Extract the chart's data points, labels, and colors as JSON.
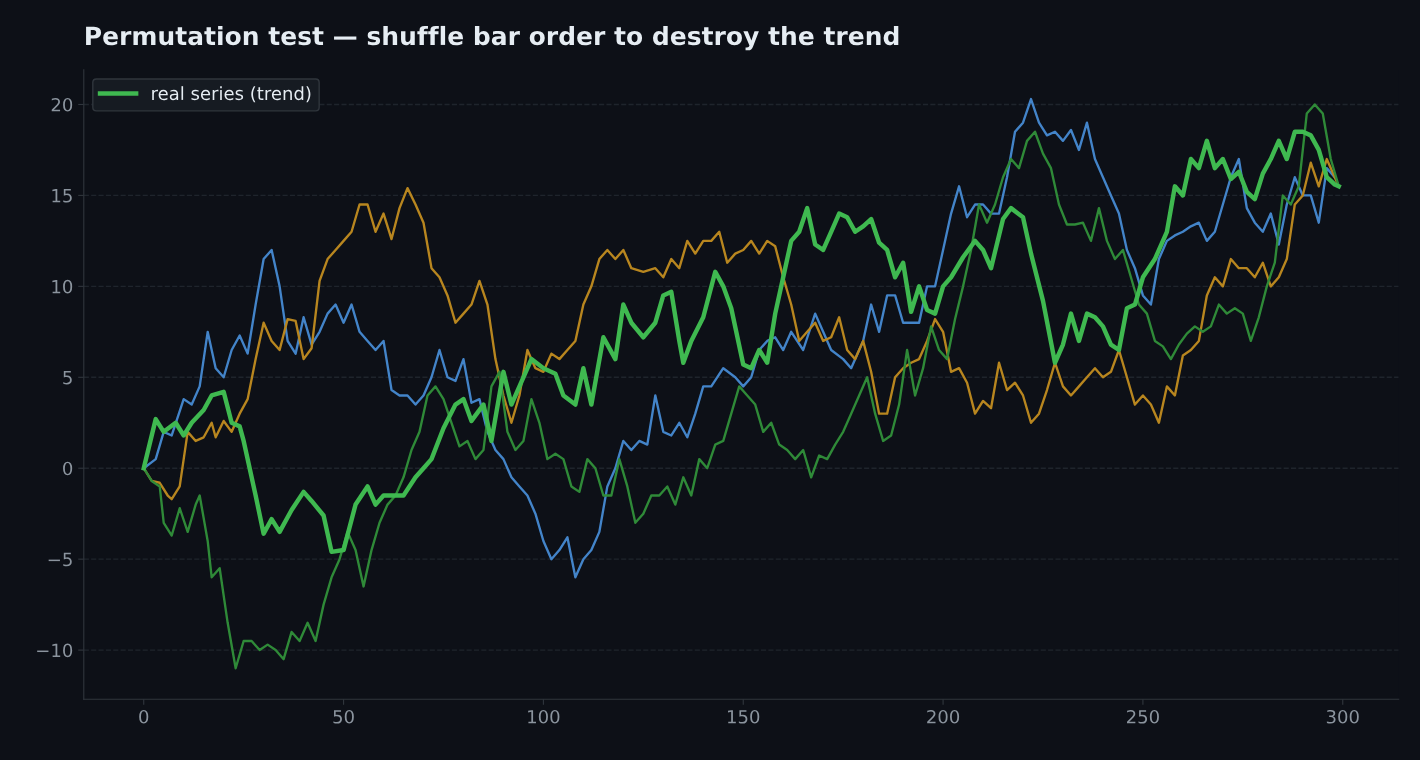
{
  "chart_data": {
    "type": "line",
    "title": "Permutation test — shuffle bar order to destroy the trend",
    "xlim": [
      -15,
      314
    ],
    "ylim": [
      -12.7,
      21.9
    ],
    "xticks": [
      0,
      50,
      100,
      150,
      200,
      250,
      300
    ],
    "yticks": [
      {
        "value": -10,
        "label": "−10"
      },
      {
        "value": -5,
        "label": "−5"
      },
      0,
      5,
      10,
      15,
      20
    ],
    "grid": "y",
    "legend": "top left",
    "line_style": "solid",
    "marker": "none",
    "series": [
      {
        "color": "#4384c9",
        "x": [
          0,
          3,
          5,
          7,
          10,
          12,
          14,
          16,
          18,
          20,
          22,
          24,
          26,
          28,
          30,
          32,
          34,
          36,
          38,
          40,
          42,
          44,
          46,
          48,
          50,
          52,
          54,
          56,
          58,
          60,
          62,
          64,
          66,
          68,
          70,
          72,
          74,
          76,
          78,
          80,
          82,
          84,
          86,
          88,
          90,
          92,
          94,
          96,
          98,
          100,
          102,
          104,
          106,
          108,
          110,
          112,
          114,
          116,
          118,
          120,
          122,
          124,
          126,
          128,
          130,
          132,
          134,
          136,
          138,
          140,
          142,
          145,
          148,
          150,
          152,
          154,
          156,
          158,
          160,
          162,
          165,
          168,
          170,
          172,
          175,
          177,
          180,
          182,
          184,
          186,
          188,
          190,
          194,
          196,
          198,
          200,
          202,
          204,
          206,
          208,
          210,
          212,
          214,
          216,
          218,
          220,
          222,
          224,
          226,
          228,
          230,
          232,
          234,
          236,
          238,
          240,
          242,
          244,
          246,
          248,
          250,
          252,
          254,
          256,
          258,
          260,
          262,
          264,
          266,
          268,
          270,
          272,
          274,
          276,
          278,
          280,
          282,
          284,
          286,
          288,
          290,
          292,
          294,
          296,
          298
        ],
        "values": [
          0,
          0.5,
          2,
          1.8,
          3.8,
          3.5,
          4.5,
          7.5,
          5.5,
          5,
          6.5,
          7.3,
          6.3,
          9,
          11.5,
          12,
          10,
          7,
          6.3,
          8.3,
          6.8,
          7.5,
          8.5,
          9,
          8,
          9,
          7.5,
          7,
          6.5,
          7,
          4.3,
          4,
          4,
          3.5,
          4,
          5,
          6.5,
          5,
          4.8,
          6,
          3.6,
          3.8,
          2,
          1,
          0.5,
          -0.5,
          -1,
          -1.5,
          -2.5,
          -4,
          -5,
          -4.5,
          -3.8,
          -6,
          -5,
          -4.5,
          -3.5,
          -1,
          0,
          1.5,
          1,
          1.5,
          1.3,
          4,
          2,
          1.8,
          2.5,
          1.7,
          3,
          4.5,
          4.5,
          5.5,
          5,
          4.5,
          5,
          6.5,
          7,
          7.2,
          6.5,
          7.5,
          6.5,
          8.5,
          7.5,
          6.5,
          6,
          5.5,
          7,
          9,
          7.5,
          9.5,
          9.5,
          8,
          8,
          10,
          10,
          12,
          14,
          15.5,
          13.8,
          14.5,
          14.5,
          14,
          14,
          16,
          18.5,
          19,
          20.3,
          19,
          18.3,
          18.5,
          18,
          18.6,
          17.5,
          19,
          17,
          16,
          15,
          14,
          12,
          11,
          9.5,
          9,
          11.5,
          12.5,
          12.8,
          13,
          13.3,
          13.5,
          12.5,
          13,
          14.5,
          16,
          17,
          14.3,
          13.5,
          13,
          14,
          12.3,
          14.5,
          16,
          15,
          15,
          13.5,
          16.5,
          16
        ]
      },
      {
        "color": "#b8861f",
        "x": [
          0,
          2,
          4,
          6,
          7,
          9,
          11,
          13,
          15,
          17,
          18,
          20,
          22,
          24,
          26,
          28,
          30,
          32,
          34,
          36,
          38,
          40,
          42,
          44,
          46,
          48,
          50,
          52,
          54,
          56,
          58,
          60,
          62,
          64,
          66,
          68,
          70,
          72,
          74,
          76,
          78,
          80,
          82,
          84,
          86,
          88,
          90,
          92,
          94,
          96,
          98,
          100,
          102,
          104,
          106,
          108,
          110,
          112,
          114,
          116,
          118,
          120,
          122,
          125,
          128,
          130,
          132,
          134,
          136,
          138,
          140,
          142,
          144,
          146,
          148,
          150,
          152,
          154,
          156,
          158,
          160,
          162,
          164,
          166,
          168,
          170,
          172,
          174,
          176,
          178,
          180,
          182,
          184,
          186,
          188,
          190,
          192,
          194,
          196,
          198,
          200,
          202,
          204,
          206,
          208,
          210,
          212,
          214,
          216,
          218,
          220,
          222,
          224,
          226,
          228,
          230,
          232,
          234,
          236,
          238,
          240,
          242,
          244,
          246,
          248,
          250,
          252,
          254,
          256,
          258,
          260,
          262,
          264,
          266,
          268,
          270,
          272,
          274,
          276,
          278,
          280,
          282,
          284,
          286,
          288,
          290,
          292,
          294,
          296,
          298,
          299
        ],
        "values": [
          0,
          -0.7,
          -0.8,
          -1.5,
          -1.7,
          -1,
          2,
          1.5,
          1.7,
          2.5,
          1.7,
          2.6,
          2,
          3,
          3.8,
          6,
          8,
          7,
          6.5,
          8.2,
          8.1,
          6,
          6.6,
          10.3,
          11.5,
          12,
          12.5,
          13,
          14.5,
          14.5,
          13,
          14,
          12.6,
          14.3,
          15.4,
          14.5,
          13.5,
          11,
          10.5,
          9.5,
          8,
          8.5,
          9,
          10.3,
          9,
          6,
          4,
          2.5,
          4,
          6.5,
          5.5,
          5.3,
          6.3,
          6,
          6.5,
          7,
          9,
          10,
          11.5,
          12,
          11.5,
          12,
          11,
          10.8,
          11,
          10.5,
          11.5,
          11,
          12.5,
          11.8,
          12.5,
          12.5,
          13,
          11.3,
          11.8,
          12,
          12.5,
          11.8,
          12.5,
          12.2,
          10.5,
          9,
          7,
          7.5,
          8,
          7,
          7.2,
          8.3,
          6.5,
          6,
          7,
          5.3,
          3,
          3,
          5,
          5.5,
          5.8,
          6,
          7,
          8.2,
          7.5,
          5.3,
          5.5,
          4.7,
          3,
          3.7,
          3.3,
          5.8,
          4.3,
          4.7,
          4,
          2.5,
          3,
          4.3,
          5.8,
          4.5,
          4,
          4.5,
          5,
          5.5,
          5,
          5.3,
          6.5,
          5,
          3.5,
          4,
          3.5,
          2.5,
          4.5,
          4,
          6.2,
          6.5,
          7,
          9.5,
          10.5,
          10,
          11.5,
          11,
          11,
          10.5,
          11.3,
          10,
          10.5,
          11.5,
          14.5,
          15,
          16.8,
          15.5,
          17,
          16,
          15.5
        ]
      },
      {
        "color": "#2f8a38",
        "x": [
          0,
          2,
          4,
          5,
          7,
          9,
          11,
          13,
          14,
          16,
          17,
          19,
          21,
          23,
          25,
          27,
          29,
          31,
          33,
          35,
          37,
          39,
          41,
          43,
          45,
          47,
          49,
          51,
          53,
          55,
          57,
          59,
          61,
          63,
          65,
          67,
          69,
          71,
          73,
          75,
          77,
          79,
          81,
          83,
          85,
          87,
          89,
          91,
          93,
          95,
          97,
          99,
          101,
          103,
          105,
          107,
          109,
          111,
          113,
          115,
          117,
          119,
          121,
          123,
          125,
          127,
          129,
          131,
          133,
          135,
          137,
          139,
          141,
          143,
          145,
          147,
          149,
          151,
          153,
          155,
          157,
          159,
          161,
          163,
          165,
          167,
          169,
          171,
          173,
          175,
          177,
          179,
          181,
          183,
          185,
          187,
          189,
          191,
          193,
          195,
          197,
          199,
          201,
          203,
          205,
          207,
          209,
          211,
          213,
          215,
          217,
          219,
          221,
          223,
          225,
          227,
          229,
          231,
          233,
          235,
          237,
          239,
          241,
          243,
          245,
          247,
          249,
          251,
          253,
          255,
          257,
          259,
          261,
          263,
          265,
          267,
          269,
          271,
          273,
          275,
          277,
          279,
          281,
          283,
          285,
          287,
          289,
          291,
          293,
          295,
          297,
          299
        ],
        "values": [
          0,
          -0.7,
          -1,
          -3,
          -3.7,
          -2.2,
          -3.5,
          -2,
          -1.5,
          -4,
          -6,
          -5.5,
          -8.5,
          -11,
          -9.5,
          -9.5,
          -10,
          -9.7,
          -10,
          -10.5,
          -9,
          -9.5,
          -8.5,
          -9.5,
          -7.5,
          -6,
          -5,
          -3.5,
          -4.5,
          -6.5,
          -4.5,
          -3,
          -2,
          -1.5,
          -0.5,
          1,
          2,
          4,
          4.5,
          3.8,
          2.5,
          1.2,
          1.5,
          0.5,
          1,
          4.5,
          5.3,
          2,
          1,
          1.5,
          3.8,
          2.5,
          0.5,
          0.8,
          0.5,
          -1,
          -1.3,
          0.5,
          0,
          -1.5,
          -1.5,
          0.5,
          -1,
          -3,
          -2.5,
          -1.5,
          -1.5,
          -1,
          -2,
          -0.5,
          -1.5,
          0.5,
          0,
          1.3,
          1.5,
          3,
          4.5,
          4,
          3.5,
          2,
          2.5,
          1.3,
          1,
          0.5,
          1,
          -0.5,
          0.7,
          0.5,
          1.3,
          2,
          3,
          4,
          5,
          3,
          1.5,
          1.8,
          3.5,
          6.5,
          4,
          5.5,
          7.8,
          6.5,
          6,
          8.2,
          10,
          12,
          14.5,
          13.5,
          14.5,
          16,
          17,
          16.5,
          18,
          18.5,
          17.3,
          16.5,
          14.5,
          13.4,
          13.4,
          13.5,
          12.5,
          14.3,
          12.5,
          11.5,
          12,
          10.5,
          9,
          8.5,
          7,
          6.7,
          6,
          6.8,
          7.4,
          7.8,
          7.5,
          7.8,
          9,
          8.5,
          8.8,
          8.5,
          7,
          8.3,
          10,
          11.3,
          15,
          14.5,
          15.5,
          19.5,
          20,
          19.5,
          17,
          15.5
        ]
      },
      {
        "name": "real series (trend)",
        "color": "#3fb950",
        "x": [
          0,
          3,
          5,
          8,
          10,
          12,
          15,
          17,
          20,
          22,
          24,
          25,
          28,
          30,
          32,
          34,
          37,
          40,
          42,
          45,
          47,
          50,
          53,
          56,
          58,
          60,
          62,
          65,
          68,
          70,
          72,
          75,
          78,
          80,
          82,
          85,
          87,
          90,
          92,
          95,
          97,
          100,
          103,
          105,
          108,
          110,
          112,
          115,
          118,
          120,
          122,
          125,
          128,
          130,
          132,
          134,
          135,
          137,
          140,
          143,
          145,
          147,
          150,
          152,
          154,
          156,
          158,
          160,
          162,
          164,
          166,
          168,
          170,
          172,
          174,
          176,
          178,
          180,
          182,
          184,
          186,
          188,
          190,
          192,
          194,
          196,
          198,
          200,
          202,
          205,
          208,
          210,
          212,
          215,
          217,
          220,
          222,
          225,
          228,
          230,
          232,
          234,
          236,
          238,
          240,
          242,
          244,
          246,
          248,
          250,
          253,
          256,
          258,
          260,
          262,
          264,
          266,
          268,
          270,
          272,
          274,
          276,
          278,
          280,
          282,
          284,
          286,
          288,
          290,
          292,
          294,
          296,
          298,
          299
        ],
        "values": [
          0,
          2.7,
          2,
          2.5,
          1.8,
          2.5,
          3.2,
          4,
          4.2,
          2.5,
          2.3,
          1.5,
          -1.5,
          -3.6,
          -2.8,
          -3.5,
          -2.3,
          -1.3,
          -1.8,
          -2.6,
          -4.6,
          -4.5,
          -2,
          -1,
          -2,
          -1.5,
          -1.5,
          -1.5,
          -0.5,
          0,
          0.5,
          2.2,
          3.5,
          3.8,
          2.6,
          3.5,
          1.5,
          5.3,
          3.5,
          5,
          6,
          5.5,
          5.2,
          4,
          3.5,
          5.5,
          3.5,
          7.2,
          6,
          9,
          8,
          7.2,
          8,
          9.5,
          9.7,
          7,
          5.8,
          7,
          8.3,
          10.8,
          10,
          8.8,
          5.7,
          5.5,
          6.5,
          5.8,
          8.5,
          10.5,
          12.5,
          13,
          14.3,
          12.3,
          12,
          13,
          14,
          13.8,
          13,
          13.3,
          13.7,
          12.4,
          12,
          10.5,
          11.3,
          8.6,
          10,
          8.7,
          8.5,
          10,
          10.5,
          11.6,
          12.5,
          12,
          11,
          13.7,
          14.3,
          13.8,
          11.8,
          9.2,
          5.8,
          6.8,
          8.5,
          7,
          8.5,
          8.3,
          7.8,
          6.8,
          6.5,
          8.8,
          9,
          10.5,
          11.5,
          13,
          15.5,
          15,
          17,
          16.5,
          18,
          16.5,
          17,
          15.9,
          16.3,
          15.2,
          14.8,
          16.2,
          17,
          18,
          17,
          18.5,
          18.5,
          18.3,
          17.5,
          16,
          15.6,
          15.5
        ]
      }
    ]
  }
}
